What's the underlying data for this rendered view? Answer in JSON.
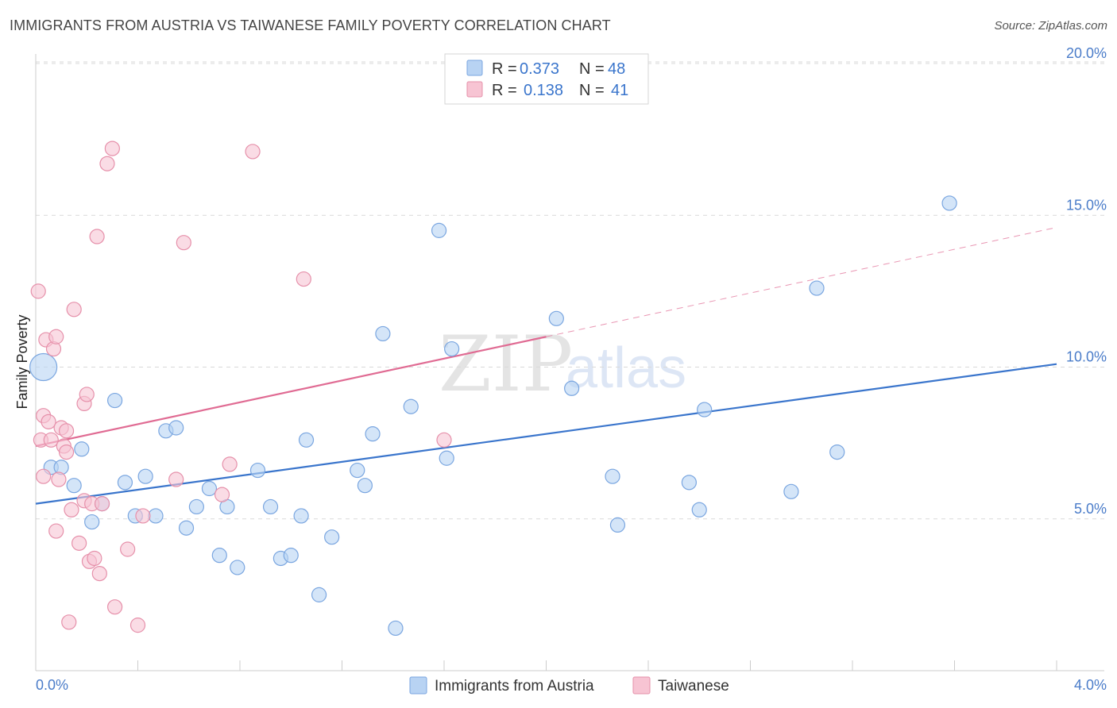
{
  "title": "IMMIGRANTS FROM AUSTRIA VS TAIWANESE FAMILY POVERTY CORRELATION CHART",
  "source": "Source: ZipAtlas.com",
  "watermark": {
    "zip": "ZIP",
    "atlas": "atlas"
  },
  "colors": {
    "blue_fill": "#b8d3f3",
    "blue_stroke": "#7aa6e0",
    "blue_line": "#3a75cc",
    "pink_fill": "#f7c4d3",
    "pink_stroke": "#e690aa",
    "pink_line": "#e06b93",
    "tick": "#4a7cc9",
    "grid": "#d9d9d9"
  },
  "chart_data": {
    "type": "scatter",
    "title": "IMMIGRANTS FROM AUSTRIA VS TAIWANESE FAMILY POVERTY CORRELATION CHART",
    "xlabel": "",
    "ylabel": "Family Poverty",
    "xlim": [
      0,
      4.0
    ],
    "ylim": [
      0,
      20.0
    ],
    "x_tick_labels": [
      "0.0%",
      "4.0%"
    ],
    "y_ticks": [
      5.0,
      10.0,
      15.0,
      20.0
    ],
    "y_tick_labels": [
      "5.0%",
      "10.0%",
      "15.0%",
      "20.0%"
    ],
    "legend": [
      {
        "r_label": "R =",
        "r_value": "0.373",
        "n_label": "N =",
        "n_value": "48"
      },
      {
        "r_label": "R =",
        "r_value": "0.138",
        "n_label": "N =",
        "n_value": "41"
      }
    ],
    "series": [
      {
        "name": "Immigrants from Austria",
        "color": "blue",
        "trend": {
          "x0": 0.0,
          "y0": 5.5,
          "x1": 4.0,
          "y1": 10.1,
          "dashed_from": null
        },
        "points": [
          {
            "x": 0.03,
            "y": 10.0,
            "big": true
          },
          {
            "x": 0.06,
            "y": 6.7
          },
          {
            "x": 0.1,
            "y": 6.7
          },
          {
            "x": 0.15,
            "y": 6.1
          },
          {
            "x": 0.18,
            "y": 7.3
          },
          {
            "x": 0.22,
            "y": 4.9
          },
          {
            "x": 0.26,
            "y": 5.5
          },
          {
            "x": 0.31,
            "y": 8.9
          },
          {
            "x": 0.35,
            "y": 6.2
          },
          {
            "x": 0.39,
            "y": 5.1
          },
          {
            "x": 0.43,
            "y": 6.4
          },
          {
            "x": 0.47,
            "y": 5.1
          },
          {
            "x": 0.51,
            "y": 7.9
          },
          {
            "x": 0.55,
            "y": 8.0
          },
          {
            "x": 0.59,
            "y": 4.7
          },
          {
            "x": 0.63,
            "y": 5.4
          },
          {
            "x": 0.68,
            "y": 6.0
          },
          {
            "x": 0.72,
            "y": 3.8
          },
          {
            "x": 0.75,
            "y": 5.4
          },
          {
            "x": 0.79,
            "y": 3.4
          },
          {
            "x": 0.87,
            "y": 6.6
          },
          {
            "x": 0.92,
            "y": 5.4
          },
          {
            "x": 0.96,
            "y": 3.7
          },
          {
            "x": 1.0,
            "y": 3.8
          },
          {
            "x": 1.04,
            "y": 5.1
          },
          {
            "x": 1.06,
            "y": 7.6
          },
          {
            "x": 1.11,
            "y": 2.5
          },
          {
            "x": 1.16,
            "y": 4.4
          },
          {
            "x": 1.26,
            "y": 6.6
          },
          {
            "x": 1.29,
            "y": 6.1
          },
          {
            "x": 1.32,
            "y": 7.8
          },
          {
            "x": 1.36,
            "y": 11.1
          },
          {
            "x": 1.41,
            "y": 1.4
          },
          {
            "x": 1.47,
            "y": 8.7
          },
          {
            "x": 1.58,
            "y": 14.5
          },
          {
            "x": 1.61,
            "y": 7.0
          },
          {
            "x": 1.63,
            "y": 10.6
          },
          {
            "x": 2.04,
            "y": 11.6
          },
          {
            "x": 2.1,
            "y": 9.3
          },
          {
            "x": 2.26,
            "y": 6.4
          },
          {
            "x": 2.28,
            "y": 4.8
          },
          {
            "x": 2.56,
            "y": 6.2
          },
          {
            "x": 2.6,
            "y": 5.3
          },
          {
            "x": 2.62,
            "y": 8.6
          },
          {
            "x": 2.96,
            "y": 5.9
          },
          {
            "x": 3.06,
            "y": 12.6
          },
          {
            "x": 3.14,
            "y": 7.2
          },
          {
            "x": 3.58,
            "y": 15.4
          }
        ]
      },
      {
        "name": "Taiwanese",
        "color": "pink",
        "trend": {
          "x0": 0.0,
          "y0": 7.4,
          "x1": 4.0,
          "y1": 14.6,
          "dashed_from": 2.0
        },
        "points": [
          {
            "x": 0.01,
            "y": 12.5
          },
          {
            "x": 0.02,
            "y": 7.6
          },
          {
            "x": 0.03,
            "y": 8.4
          },
          {
            "x": 0.03,
            "y": 6.4
          },
          {
            "x": 0.04,
            "y": 10.9
          },
          {
            "x": 0.05,
            "y": 8.2
          },
          {
            "x": 0.06,
            "y": 7.6
          },
          {
            "x": 0.07,
            "y": 10.6
          },
          {
            "x": 0.08,
            "y": 11.0
          },
          {
            "x": 0.08,
            "y": 4.6
          },
          {
            "x": 0.09,
            "y": 6.3
          },
          {
            "x": 0.1,
            "y": 8.0
          },
          {
            "x": 0.11,
            "y": 7.4
          },
          {
            "x": 0.12,
            "y": 7.2
          },
          {
            "x": 0.12,
            "y": 7.9
          },
          {
            "x": 0.13,
            "y": 1.6
          },
          {
            "x": 0.14,
            "y": 5.3
          },
          {
            "x": 0.15,
            "y": 11.9
          },
          {
            "x": 0.17,
            "y": 4.2
          },
          {
            "x": 0.19,
            "y": 5.6
          },
          {
            "x": 0.19,
            "y": 8.8
          },
          {
            "x": 0.2,
            "y": 9.1
          },
          {
            "x": 0.21,
            "y": 3.6
          },
          {
            "x": 0.22,
            "y": 5.5
          },
          {
            "x": 0.23,
            "y": 3.7
          },
          {
            "x": 0.24,
            "y": 14.3
          },
          {
            "x": 0.25,
            "y": 3.2
          },
          {
            "x": 0.26,
            "y": 5.5
          },
          {
            "x": 0.28,
            "y": 16.7
          },
          {
            "x": 0.3,
            "y": 17.2
          },
          {
            "x": 0.31,
            "y": 2.1
          },
          {
            "x": 0.36,
            "y": 4.0
          },
          {
            "x": 0.4,
            "y": 1.5
          },
          {
            "x": 0.42,
            "y": 5.1
          },
          {
            "x": 0.55,
            "y": 6.3
          },
          {
            "x": 0.58,
            "y": 14.1
          },
          {
            "x": 0.73,
            "y": 5.8
          },
          {
            "x": 0.76,
            "y": 6.8
          },
          {
            "x": 0.85,
            "y": 17.1
          },
          {
            "x": 1.05,
            "y": 12.9
          },
          {
            "x": 1.6,
            "y": 7.6
          }
        ]
      }
    ]
  },
  "bottom_legend": [
    "Immigrants from Austria",
    "Taiwanese"
  ]
}
